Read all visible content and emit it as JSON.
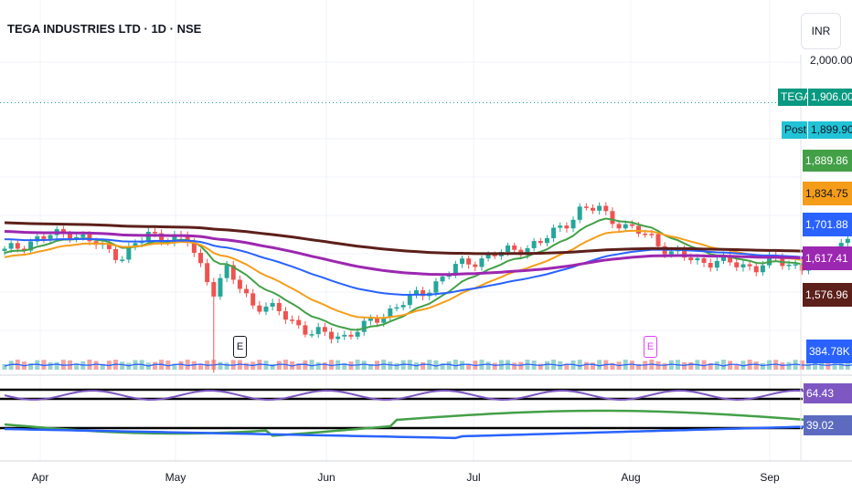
{
  "header": {
    "title": "TEGA INDUSTRIES LTD · 1D · NSE",
    "currency_label": "INR"
  },
  "price_axis": {
    "top_label": "2,000.00"
  },
  "chart_data": {
    "type": "candlestick",
    "title": "TEGA INDUSTRIES LTD · 1D · NSE",
    "x_ticks": [
      "Apr",
      "May",
      "Jun",
      "Jul",
      "Aug",
      "Sep"
    ],
    "price_range": [
      1350,
      2010
    ],
    "symbol_label": {
      "name": "TEGA",
      "value": "1,906.00"
    },
    "post_label": {
      "name": "Post",
      "value": "1,899.90"
    },
    "ma_labels": [
      "1,889.86",
      "1,834.75",
      "1,701.88",
      "1,617.41",
      "1,576.96"
    ],
    "ma_colors": [
      "#43a047",
      "#f59d19",
      "#2962ff",
      "#9c27b0",
      "#5d1f1a"
    ],
    "volume_label": "384.78K",
    "oscillator_labels": [
      "64.43",
      "39.02"
    ],
    "earnings_marker": "E",
    "colors": {
      "up": "#26a69a",
      "down": "#ef5350",
      "volume_up": "#9ad4cd",
      "volume_down": "#f3a5a3"
    }
  }
}
